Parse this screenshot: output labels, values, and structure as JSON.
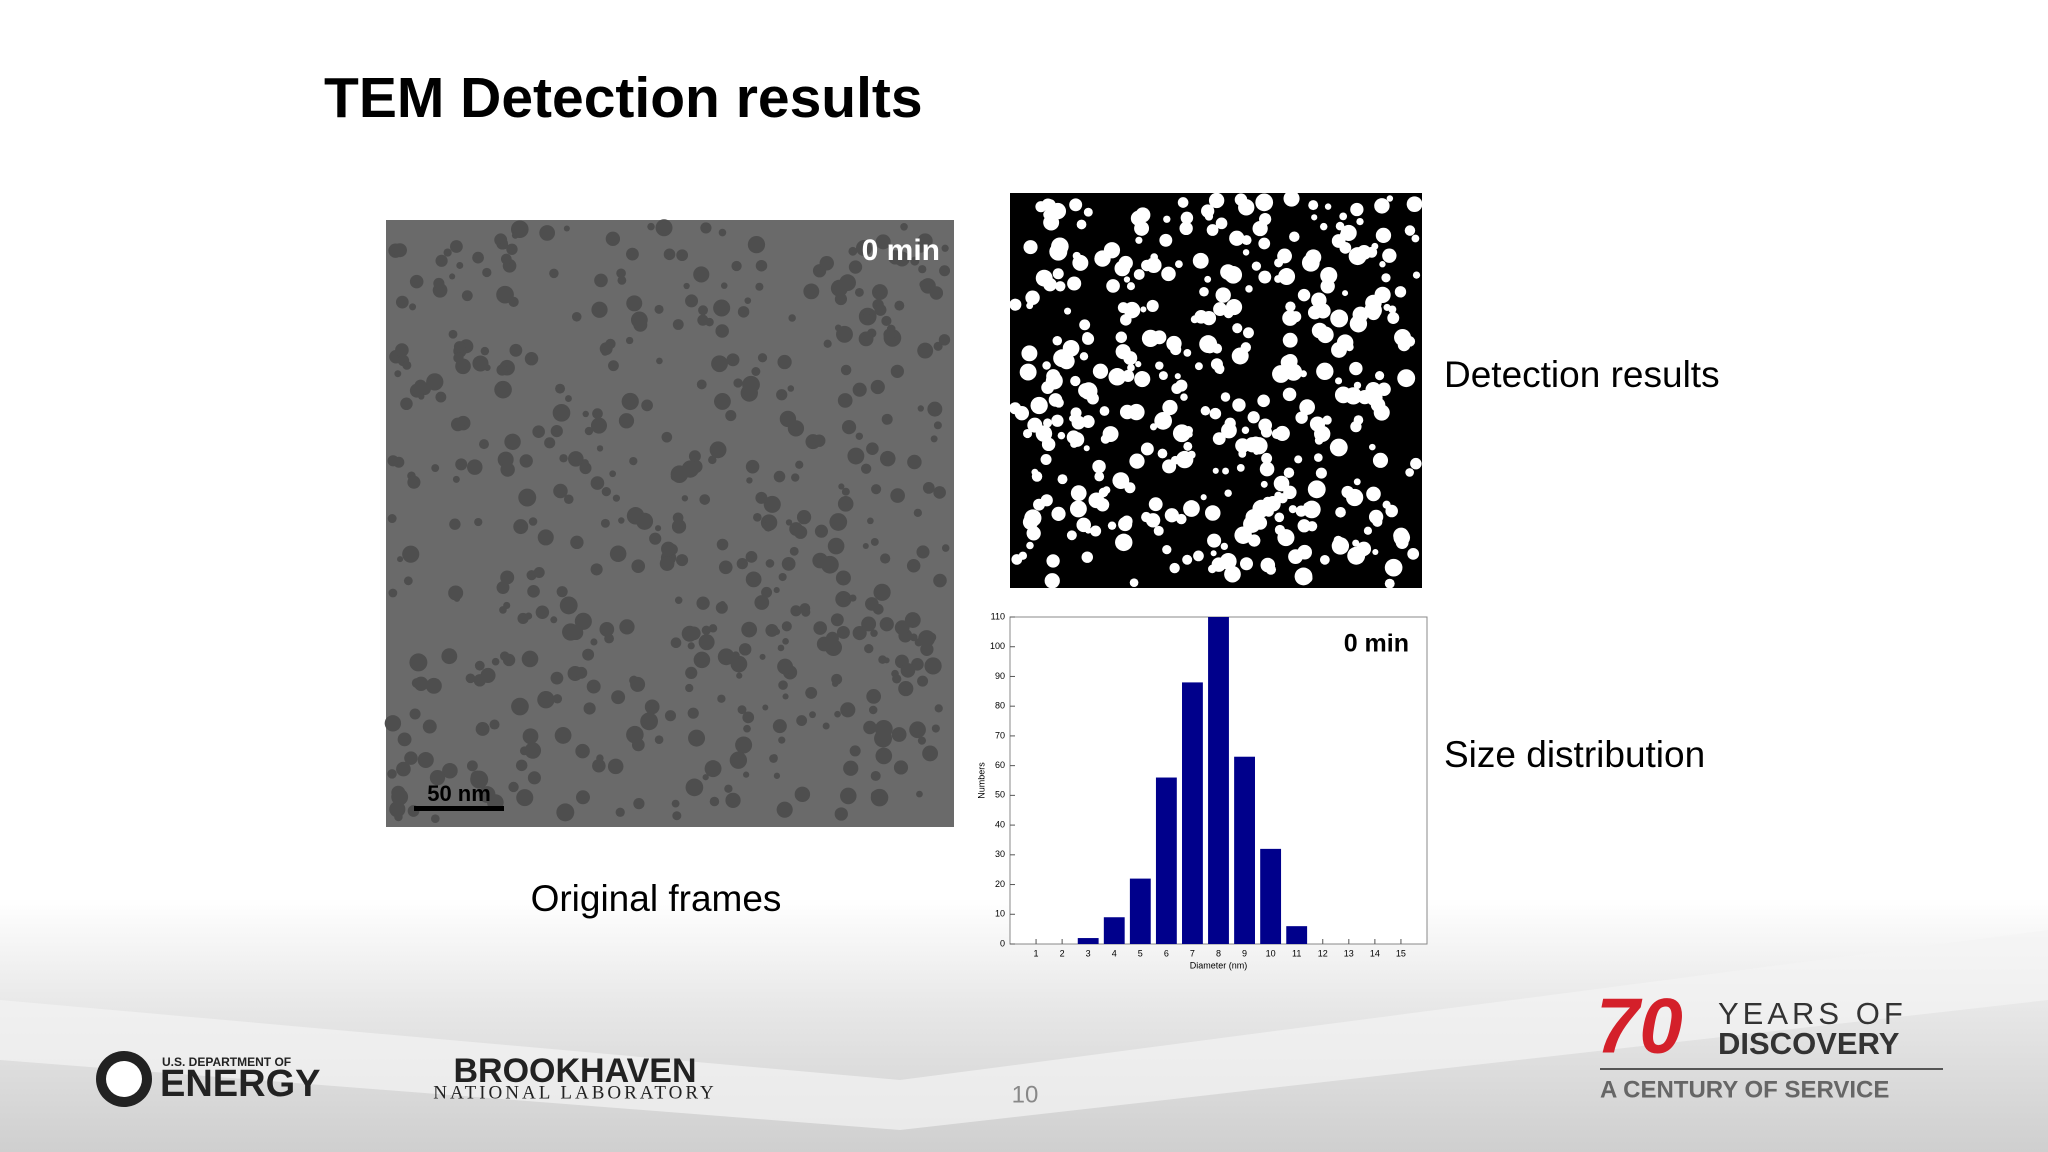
{
  "title": "TEM Detection results",
  "original": {
    "overlay": "0 min",
    "scale_bar": "50 nm",
    "caption": "Original frames"
  },
  "detection": {
    "caption": "Detection results"
  },
  "distribution": {
    "caption": "Size distribution"
  },
  "chart_data": {
    "type": "bar",
    "annotation": "0 min",
    "x_label": "Diameter (nm)",
    "y_label": "Numbers",
    "x": [
      1,
      2,
      3,
      4,
      5,
      6,
      7,
      8,
      9,
      10,
      11,
      12,
      13,
      14,
      15
    ],
    "values": [
      0,
      0,
      2,
      9,
      22,
      56,
      88,
      110,
      63,
      32,
      6,
      0,
      0,
      0,
      0
    ],
    "color": "#00008b",
    "xlim": [
      0,
      16
    ],
    "xticks": [
      1,
      2,
      3,
      4,
      5,
      6,
      7,
      8,
      9,
      10,
      11,
      12,
      13,
      14,
      15
    ],
    "ylim": [
      0,
      110
    ],
    "yticks": [
      0,
      10,
      20,
      30,
      40,
      50,
      60,
      70,
      80,
      90,
      100,
      110
    ]
  },
  "footer": {
    "doe_top": "U.S. DEPARTMENT OF",
    "doe_main": "ENERGY",
    "bnl_main": "BROOKHAVEN",
    "bnl_sub": "NATIONAL LABORATORY",
    "anniv_number": "70",
    "anniv_line1": "YEARS OF",
    "anniv_line2": "DISCOVERY",
    "anniv_sub": "A CENTURY OF SERVICE",
    "page": "10"
  }
}
